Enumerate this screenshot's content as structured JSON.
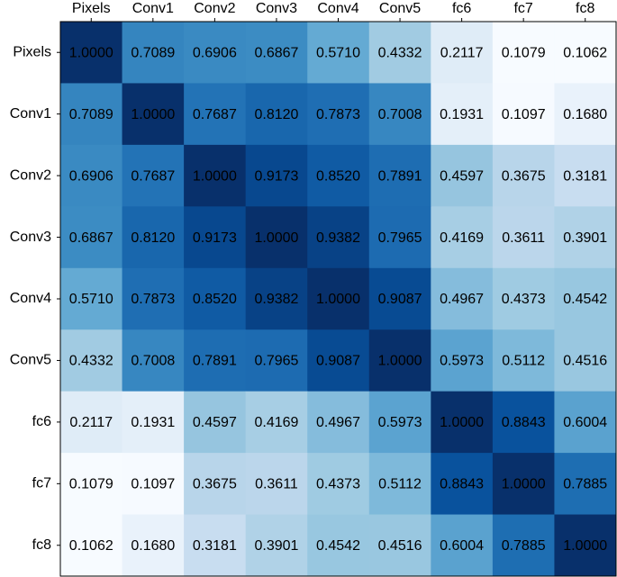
{
  "chart_data": {
    "type": "heatmap",
    "colormap": "Blues",
    "x_categories": [
      "Pixels",
      "Conv1",
      "Conv2",
      "Conv3",
      "Conv4",
      "Conv5",
      "fc6",
      "fc7",
      "fc8"
    ],
    "y_categories": [
      "Pixels",
      "Conv1",
      "Conv2",
      "Conv3",
      "Conv4",
      "Conv5",
      "fc6",
      "fc7",
      "fc8"
    ],
    "values": [
      [
        1.0,
        0.7089,
        0.6906,
        0.6867,
        0.571,
        0.4332,
        0.2117,
        0.1079,
        0.1062
      ],
      [
        0.7089,
        1.0,
        0.7687,
        0.812,
        0.7873,
        0.7008,
        0.1931,
        0.1097,
        0.168
      ],
      [
        0.6906,
        0.7687,
        1.0,
        0.9173,
        0.852,
        0.7891,
        0.4597,
        0.3675,
        0.3181
      ],
      [
        0.6867,
        0.812,
        0.9173,
        1.0,
        0.9382,
        0.7965,
        0.4169,
        0.3611,
        0.3901
      ],
      [
        0.571,
        0.7873,
        0.852,
        0.9382,
        1.0,
        0.9087,
        0.4967,
        0.4373,
        0.4542
      ],
      [
        0.4332,
        0.7008,
        0.7891,
        0.7965,
        0.9087,
        1.0,
        0.5973,
        0.5112,
        0.4516
      ],
      [
        0.2117,
        0.1931,
        0.4597,
        0.4169,
        0.4967,
        0.5973,
        1.0,
        0.8843,
        0.6004
      ],
      [
        0.1079,
        0.1097,
        0.3675,
        0.3611,
        0.4373,
        0.5112,
        0.8843,
        1.0,
        0.7885
      ],
      [
        0.1062,
        0.168,
        0.3181,
        0.3901,
        0.4542,
        0.4516,
        0.6004,
        0.7885,
        1.0
      ]
    ],
    "value_labels": [
      [
        "1.0000",
        "0.7089",
        "0.6906",
        "0.6867",
        "0.5710",
        "0.4332",
        "0.2117",
        "0.1079",
        "0.1062"
      ],
      [
        "0.7089",
        "1.0000",
        "0.7687",
        "0.8120",
        "0.7873",
        "0.7008",
        "0.1931",
        "0.1097",
        "0.1680"
      ],
      [
        "0.6906",
        "0.7687",
        "1.0000",
        "0.9173",
        "0.8520",
        "0.7891",
        "0.4597",
        "0.3675",
        "0.3181"
      ],
      [
        "0.6867",
        "0.8120",
        "0.9173",
        "1.0000",
        "0.9382",
        "0.7965",
        "0.4169",
        "0.3611",
        "0.3901"
      ],
      [
        "0.5710",
        "0.7873",
        "0.8520",
        "0.9382",
        "1.0000",
        "0.9087",
        "0.4967",
        "0.4373",
        "0.4542"
      ],
      [
        "0.4332",
        "0.7008",
        "0.7891",
        "0.7965",
        "0.9087",
        "1.0000",
        "0.5973",
        "0.5112",
        "0.4516"
      ],
      [
        "0.2117",
        "0.1931",
        "0.4597",
        "0.4169",
        "0.4967",
        "0.5973",
        "1.0000",
        "0.8843",
        "0.6004"
      ],
      [
        "0.1079",
        "0.1097",
        "0.3675",
        "0.3611",
        "0.4373",
        "0.5112",
        "0.8843",
        "1.0000",
        "0.7885"
      ],
      [
        "0.1062",
        "0.1680",
        "0.3181",
        "0.3901",
        "0.4542",
        "0.4516",
        "0.6004",
        "0.7885",
        "1.0000"
      ]
    ]
  }
}
